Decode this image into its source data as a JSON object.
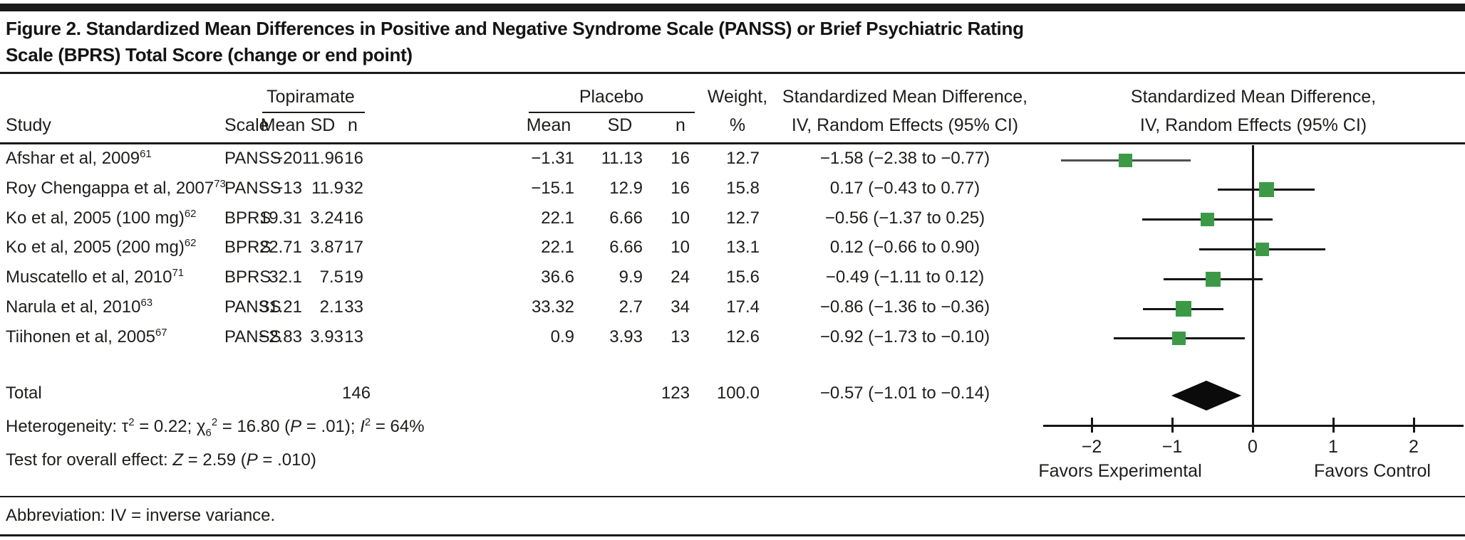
{
  "title": "Figure 2. Standardized Mean Differences in Positive and Negative Syndrome Scale (PANSS) or Brief Psychiatric Rating Scale (BPRS) Total Score (change or end point)",
  "header": {
    "study": "Study",
    "scale": "Scale",
    "mean": "Mean",
    "sd": "SD",
    "n": "n",
    "group_topiramate": "Topiramate",
    "group_placebo": "Placebo",
    "weight_line1": "Weight,",
    "weight_line2": "%",
    "smd_line1": "Standardized Mean Difference,",
    "smd_line2": "IV, Random Effects (95% CI)"
  },
  "rows": [
    {
      "study": "Afshar et al, 2009",
      "ref": "61",
      "scale": "PANSS",
      "t_mean": "−20",
      "t_sd": "11.96",
      "t_n": "16",
      "p_mean": "−1.31",
      "p_sd": "11.13",
      "p_n": "16",
      "weight": "12.7",
      "smd_text": "−1.58 (−2.38 to −0.77)"
    },
    {
      "study": "Roy Chengappa et al, 2007",
      "ref": "73",
      "scale": "PANSS",
      "t_mean": "−13",
      "t_sd": "11.9",
      "t_n": "32",
      "p_mean": "−15.1",
      "p_sd": "12.9",
      "p_n": "16",
      "weight": "15.8",
      "smd_text": "0.17 (−0.43 to 0.77)"
    },
    {
      "study": "Ko et al, 2005 (100 mg)",
      "ref": "62",
      "scale": "BPRS",
      "t_mean": "19.31",
      "t_sd": "3.24",
      "t_n": "16",
      "p_mean": "22.1",
      "p_sd": "6.66",
      "p_n": "10",
      "weight": "12.7",
      "smd_text": "−0.56 (−1.37 to 0.25)"
    },
    {
      "study": "Ko et al, 2005 (200 mg)",
      "ref": "62",
      "scale": "BPRS",
      "t_mean": "22.71",
      "t_sd": "3.87",
      "t_n": "17",
      "p_mean": "22.1",
      "p_sd": "6.66",
      "p_n": "10",
      "weight": "13.1",
      "smd_text": "0.12 (−0.66 to 0.90)"
    },
    {
      "study": "Muscatello et al, 2010",
      "ref": "71",
      "scale": "BPRS",
      "t_mean": "32.1",
      "t_sd": "7.5",
      "t_n": "19",
      "p_mean": "36.6",
      "p_sd": "9.9",
      "p_n": "24",
      "weight": "15.6",
      "smd_text": "−0.49 (−1.11 to 0.12)"
    },
    {
      "study": "Narula et al, 2010",
      "ref": "63",
      "scale": "PANSS",
      "t_mean": "31.21",
      "t_sd": "2.1",
      "t_n": "33",
      "p_mean": "33.32",
      "p_sd": "2.7",
      "p_n": "34",
      "weight": "17.4",
      "smd_text": "−0.86 (−1.36 to −0.36)"
    },
    {
      "study": "Tiihonen et al, 2005",
      "ref": "67",
      "scale": "PANSS",
      "t_mean": "−2.83",
      "t_sd": "3.93",
      "t_n": "13",
      "p_mean": "0.9",
      "p_sd": "3.93",
      "p_n": "13",
      "weight": "12.6",
      "smd_text": "−0.92 (−1.73 to −0.10)"
    }
  ],
  "total": {
    "label": "Total",
    "t_n": "146",
    "p_n": "123",
    "weight": "100.0",
    "smd_text": "−0.57 (−1.01 to −0.14)"
  },
  "notes": {
    "heterogeneity_segments": [
      [
        "Heterogeneity: τ",
        ""
      ],
      [
        "2",
        "sup"
      ],
      [
        " = 0.22; χ",
        ""
      ],
      [
        "6",
        "sub"
      ],
      [
        "2",
        "sup"
      ],
      [
        " = 16.80 (",
        ""
      ],
      [
        "P",
        "i"
      ],
      [
        " = .01); ",
        ""
      ],
      [
        "I",
        "i"
      ],
      [
        "2",
        "sup"
      ],
      [
        " = 64%",
        ""
      ]
    ],
    "overall_segments": [
      [
        "Test for overall effect: ",
        ""
      ],
      [
        "Z",
        "i"
      ],
      [
        " = 2.59 (",
        ""
      ],
      [
        "P",
        "i"
      ],
      [
        " = .010)",
        ""
      ]
    ],
    "abbreviation": "Abbreviation: IV = inverse variance."
  },
  "axis": {
    "tick_labels": [
      "−2",
      "−1",
      "0",
      "1",
      "2"
    ],
    "tick_values": [
      -2,
      -1,
      0,
      1,
      2
    ],
    "favors_left": "Favors Experimental",
    "favors_right": "Favors Control"
  },
  "chart_data": {
    "type": "forest",
    "title": "Standardized Mean Difference, IV, Random Effects (95% CI)",
    "x_axis": {
      "ticks": [
        -2,
        -1,
        0,
        1,
        2
      ],
      "range_shown": [
        -2.5,
        2.6
      ],
      "zero_line": 0,
      "label_left": "Favors Experimental",
      "label_right": "Favors Control"
    },
    "marker_color": "#3c9a47",
    "diamond_color": "#0b0b0b",
    "studies": [
      {
        "name": "Afshar et al, 2009",
        "scale": "PANSS",
        "estimate": -1.58,
        "ci_low": -2.38,
        "ci_high": -0.77,
        "weight_pct": 12.7,
        "line_color": "#4f4f4f"
      },
      {
        "name": "Roy Chengappa et al, 2007",
        "scale": "PANSS",
        "estimate": 0.17,
        "ci_low": -0.43,
        "ci_high": 0.77,
        "weight_pct": 15.8,
        "line_color": "#141414"
      },
      {
        "name": "Ko et al, 2005 (100 mg)",
        "scale": "BPRS",
        "estimate": -0.56,
        "ci_low": -1.37,
        "ci_high": 0.25,
        "weight_pct": 12.7,
        "line_color": "#141414"
      },
      {
        "name": "Ko et al, 2005 (200 mg)",
        "scale": "BPRS",
        "estimate": 0.12,
        "ci_low": -0.66,
        "ci_high": 0.9,
        "weight_pct": 13.1,
        "line_color": "#141414"
      },
      {
        "name": "Muscatello et al, 2010",
        "scale": "BPRS",
        "estimate": -0.49,
        "ci_low": -1.11,
        "ci_high": 0.12,
        "weight_pct": 15.6,
        "line_color": "#141414"
      },
      {
        "name": "Narula et al, 2010",
        "scale": "PANSS",
        "estimate": -0.86,
        "ci_low": -1.36,
        "ci_high": -0.36,
        "weight_pct": 17.4,
        "line_color": "#141414"
      },
      {
        "name": "Tiihonen et al, 2005",
        "scale": "PANSS",
        "estimate": -0.92,
        "ci_low": -1.73,
        "ci_high": -0.1,
        "weight_pct": 12.6,
        "line_color": "#141414"
      }
    ],
    "total": {
      "name": "Total",
      "estimate": -0.57,
      "ci_low": -1.01,
      "ci_high": -0.14,
      "weight_pct": 100.0
    }
  }
}
